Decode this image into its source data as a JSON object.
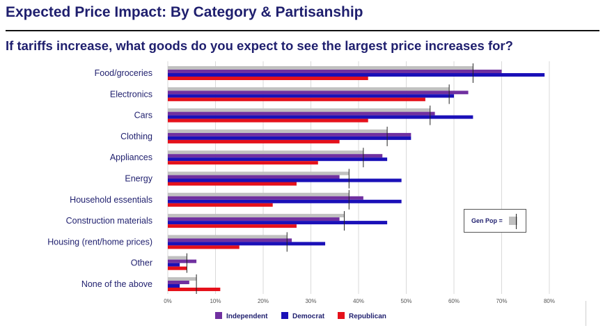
{
  "header": {
    "title": "Expected Price Impact: By Category & Partisanship",
    "subtitle": "If tariffs increase, what goods do you expect to see the largest price increases for?"
  },
  "genpop_legend": {
    "label": "Gen Pop ="
  },
  "colors": {
    "genpop": "#c0c0c0",
    "independent": "#7030a0",
    "democrat": "#1a10b8",
    "republican": "#e5111b",
    "gridline": "#d9d9d9",
    "text": "#1f1f6e"
  },
  "chart_data": {
    "type": "bar",
    "orientation": "horizontal",
    "categories": [
      "Food/groceries",
      "Electronics",
      "Cars",
      "Clothing",
      "Appliances",
      "Energy",
      "Household essentials",
      "Construction materials",
      "Housing (rent/home prices)",
      "Other",
      "None of the above"
    ],
    "series": [
      {
        "name": "Gen Pop",
        "values": [
          64,
          59,
          55,
          46,
          41,
          38,
          38,
          37,
          25,
          4,
          6
        ]
      },
      {
        "name": "Independent",
        "values": [
          70,
          63,
          56,
          51,
          45,
          36,
          41,
          36,
          26,
          6,
          4.5
        ]
      },
      {
        "name": "Democrat",
        "values": [
          79,
          60,
          64,
          51,
          46,
          49,
          49,
          46,
          33,
          2.5,
          2.5
        ]
      },
      {
        "name": "Republican",
        "values": [
          42,
          54,
          42,
          36,
          31.5,
          27,
          22,
          27,
          15,
          4,
          11
        ]
      }
    ],
    "genpop_marker": [
      64,
      59,
      55,
      46,
      41,
      38,
      38,
      37,
      25,
      4,
      6
    ],
    "xlim": [
      0,
      80
    ],
    "xticks": [
      "0%",
      "10%",
      "20%",
      "30%",
      "40%",
      "50%",
      "60%",
      "70%",
      "80%"
    ],
    "legend": [
      {
        "name": "Independent",
        "color": "#7030a0"
      },
      {
        "name": "Democrat",
        "color": "#1a10b8"
      },
      {
        "name": "Republican",
        "color": "#e5111b"
      }
    ],
    "grid": true
  }
}
